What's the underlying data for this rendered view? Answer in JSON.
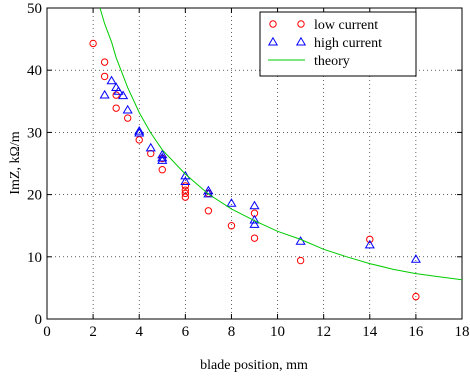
{
  "chart_data": {
    "type": "scatter",
    "title": "",
    "xlabel": "blade position, mm",
    "ylabel": "ImZ, kΩ/m",
    "xlim": [
      0,
      18
    ],
    "ylim": [
      0,
      50
    ],
    "xticks": [
      0,
      2,
      4,
      6,
      8,
      10,
      12,
      14,
      16,
      18
    ],
    "yticks": [
      0,
      10,
      20,
      30,
      40,
      50
    ],
    "grid": "dotted",
    "legend_position": "top-right",
    "series": [
      {
        "name": "low  current",
        "marker": "circle",
        "color": "#ff0000",
        "points": [
          [
            2,
            44.3
          ],
          [
            2.5,
            41.3
          ],
          [
            2.5,
            39
          ],
          [
            3,
            36
          ],
          [
            3,
            33.9
          ],
          [
            3.5,
            32.3
          ],
          [
            4,
            28.8
          ],
          [
            4.5,
            26.6
          ],
          [
            5,
            25.8
          ],
          [
            5,
            24
          ],
          [
            6,
            21.4
          ],
          [
            6,
            20.7
          ],
          [
            6,
            20.2
          ],
          [
            6,
            19.6
          ],
          [
            7,
            20.2
          ],
          [
            7,
            17.4
          ],
          [
            8,
            15
          ],
          [
            9,
            17
          ],
          [
            9,
            13
          ],
          [
            11,
            9.4
          ],
          [
            14,
            12.8
          ],
          [
            16,
            3.6
          ]
        ]
      },
      {
        "name": "high current",
        "marker": "triangle",
        "color": "#0000ff",
        "points": [
          [
            2.5,
            36
          ],
          [
            2.8,
            38.3
          ],
          [
            3,
            37.2
          ],
          [
            3.1,
            36.6
          ],
          [
            3.3,
            35.9
          ],
          [
            3.5,
            33.6
          ],
          [
            4,
            30.2
          ],
          [
            4,
            29.9
          ],
          [
            4.5,
            27.5
          ],
          [
            5,
            26.4
          ],
          [
            5,
            25.9
          ],
          [
            5,
            25.5
          ],
          [
            6,
            23
          ],
          [
            6,
            22.1
          ],
          [
            7,
            20.6
          ],
          [
            7,
            20.1
          ],
          [
            8,
            18.6
          ],
          [
            9,
            18.2
          ],
          [
            9,
            15.9
          ],
          [
            9,
            15.2
          ],
          [
            11,
            12.5
          ],
          [
            14,
            11.9
          ],
          [
            16,
            9.6
          ]
        ]
      },
      {
        "name": "theory",
        "line": true,
        "color": "#00cc00",
        "points": [
          [
            2.3,
            50
          ],
          [
            2.5,
            47.5
          ],
          [
            2.8,
            44.5
          ],
          [
            3,
            42
          ],
          [
            3.5,
            37.2
          ],
          [
            4,
            33.2
          ],
          [
            4.5,
            29.9
          ],
          [
            5,
            27.2
          ],
          [
            6,
            23.3
          ],
          [
            7,
            20.1
          ],
          [
            8,
            17.7
          ],
          [
            9,
            15.8
          ],
          [
            10,
            14.1
          ],
          [
            11,
            12.8
          ],
          [
            12,
            11.2
          ],
          [
            13,
            10
          ],
          [
            14,
            8.9
          ],
          [
            15,
            8
          ],
          [
            16,
            7.3
          ],
          [
            17,
            6.8
          ],
          [
            18,
            6.3
          ]
        ]
      }
    ]
  }
}
